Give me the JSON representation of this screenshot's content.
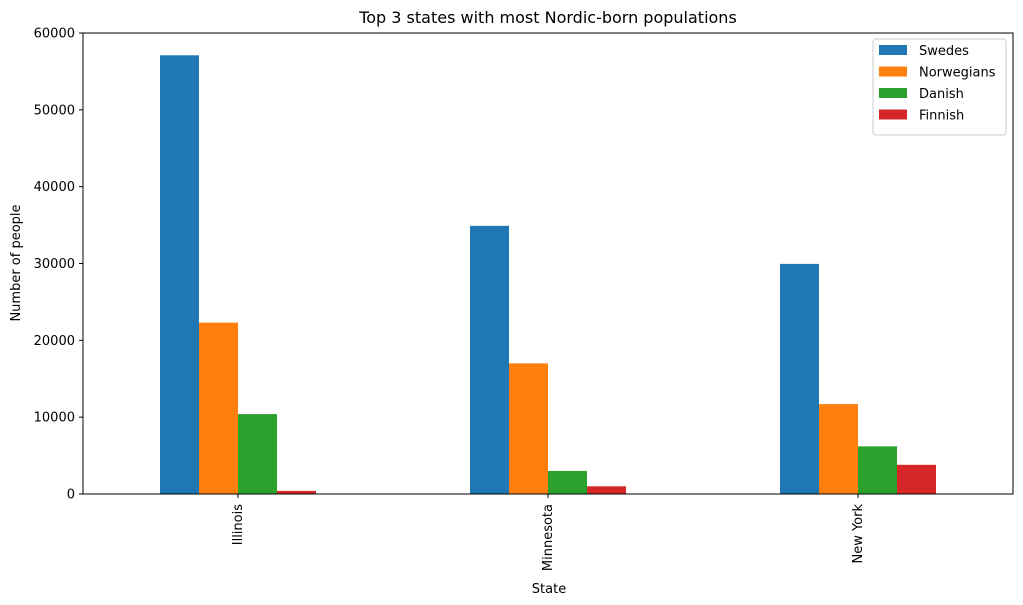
{
  "chart_data": {
    "type": "bar",
    "title": "Top 3 states with most Nordic-born populations",
    "xlabel": "State",
    "ylabel": "Number of people",
    "categories": [
      "Illinois",
      "Minnesota",
      "New York"
    ],
    "ylim": [
      0,
      60000
    ],
    "yticks": [
      0,
      10000,
      20000,
      30000,
      40000,
      50000,
      60000
    ],
    "grid": false,
    "legend_position": "top-right",
    "series": [
      {
        "name": "Swedes",
        "color": "#1f77b4",
        "values": [
          57100,
          34900,
          29950
        ]
      },
      {
        "name": "Norwegians",
        "color": "#ff7f0e",
        "values": [
          22300,
          17000,
          11700
        ]
      },
      {
        "name": "Danish",
        "color": "#2ca02c",
        "values": [
          10400,
          3000,
          6200
        ]
      },
      {
        "name": "Finnish",
        "color": "#d62728",
        "values": [
          400,
          1000,
          3800
        ]
      }
    ]
  }
}
